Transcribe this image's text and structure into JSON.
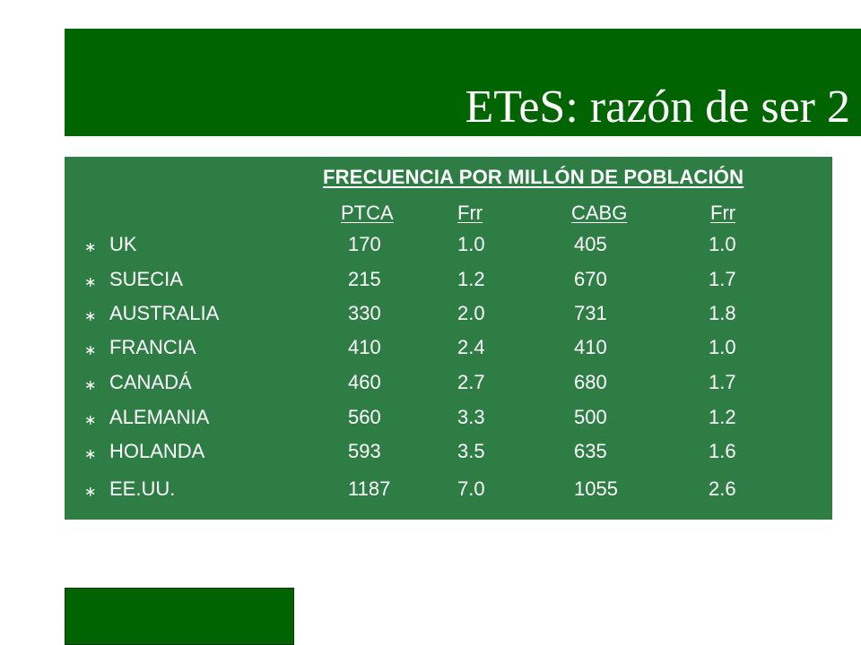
{
  "slide": {
    "title": "ETeS: razón de ser 2"
  },
  "table": {
    "heading": "FRECUENCIA POR MILLÓN DE POBLACIÓN",
    "columns": [
      "PTCA",
      "Frr",
      "CABG",
      "Frr"
    ],
    "bullet_symbol": "∗",
    "rows": [
      {
        "country": "UK",
        "ptca": "170",
        "frr1": "1.0",
        "cabg": "405",
        "frr2": "1.0"
      },
      {
        "country": "SUECIA",
        "ptca": "215",
        "frr1": "1.2",
        "cabg": "670",
        "frr2": "1.7"
      },
      {
        "country": "AUSTRALIA",
        "ptca": "330",
        "frr1": "2.0",
        "cabg": "731",
        "frr2": "1.8"
      },
      {
        "country": "FRANCIA",
        "ptca": "410",
        "frr1": "2.4",
        "cabg": "410",
        "frr2": "1.0"
      },
      {
        "country": "CANADÁ",
        "ptca": "460",
        "frr1": "2.7",
        "cabg": "680",
        "frr2": "1.7"
      },
      {
        "country": "ALEMANIA",
        "ptca": "560",
        "frr1": "3.3",
        "cabg": "500",
        "frr2": "1.2"
      },
      {
        "country": "HOLANDA",
        "ptca": "593",
        "frr1": "3.5",
        "cabg": "635",
        "frr2": "1.6"
      },
      {
        "country": "EE.UU.",
        "ptca": "1187",
        "frr1": "7.0",
        "cabg": "1055",
        "frr2": "2.6"
      }
    ]
  },
  "colors": {
    "title_bar": "#006400",
    "table_bg": "#2e7d45",
    "text": "#ffffff"
  }
}
